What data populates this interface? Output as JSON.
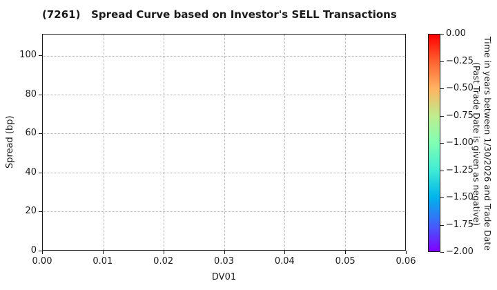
{
  "title": "(7261)   Spread Curve based on Investor's SELL Transactions",
  "chart_data": {
    "type": "scatter",
    "title": "(7261)   Spread Curve based on Investor's SELL Transactions",
    "xlabel": "DV01",
    "ylabel": "Spread (bp)",
    "xlim": [
      0.0,
      0.06
    ],
    "ylim": [
      0,
      111
    ],
    "grid": "dotted",
    "points": [],
    "x_ticks": [
      {
        "value": 0.0,
        "label": "0.00"
      },
      {
        "value": 0.01,
        "label": "0.01"
      },
      {
        "value": 0.02,
        "label": "0.02"
      },
      {
        "value": 0.03,
        "label": "0.03"
      },
      {
        "value": 0.04,
        "label": "0.04"
      },
      {
        "value": 0.05,
        "label": "0.05"
      },
      {
        "value": 0.06,
        "label": "0.06"
      }
    ],
    "y_ticks": [
      {
        "value": 0,
        "label": "0"
      },
      {
        "value": 20,
        "label": "20"
      },
      {
        "value": 40,
        "label": "40"
      },
      {
        "value": 60,
        "label": "60"
      },
      {
        "value": 80,
        "label": "80"
      },
      {
        "value": 100,
        "label": "100"
      }
    ],
    "colorbar": {
      "label_line1": "Time in years between 1/30/2026 and Trade Date",
      "label_line2": "(Past Trade Date is given as negative)",
      "clim": [
        -2.0,
        0.0
      ],
      "colormap": "rainbow_reversed",
      "ticks": [
        {
          "value": 0.0,
          "label": "0.00"
        },
        {
          "value": -0.25,
          "label": "−0.25"
        },
        {
          "value": -0.5,
          "label": "−0.50"
        },
        {
          "value": -0.75,
          "label": "−0.75"
        },
        {
          "value": -1.0,
          "label": "−1.00"
        },
        {
          "value": -1.25,
          "label": "−1.25"
        },
        {
          "value": -1.5,
          "label": "−1.50"
        },
        {
          "value": -1.75,
          "label": "−1.75"
        },
        {
          "value": -2.0,
          "label": "−2.00"
        }
      ],
      "gradient_stops_top_to_bottom": [
        "#ff0000",
        "#ff6232",
        "#ffb462",
        "#bfec8e",
        "#80ffb4",
        "#40ecd4",
        "#00b4ec",
        "#4062fa",
        "#8000ff"
      ]
    }
  }
}
